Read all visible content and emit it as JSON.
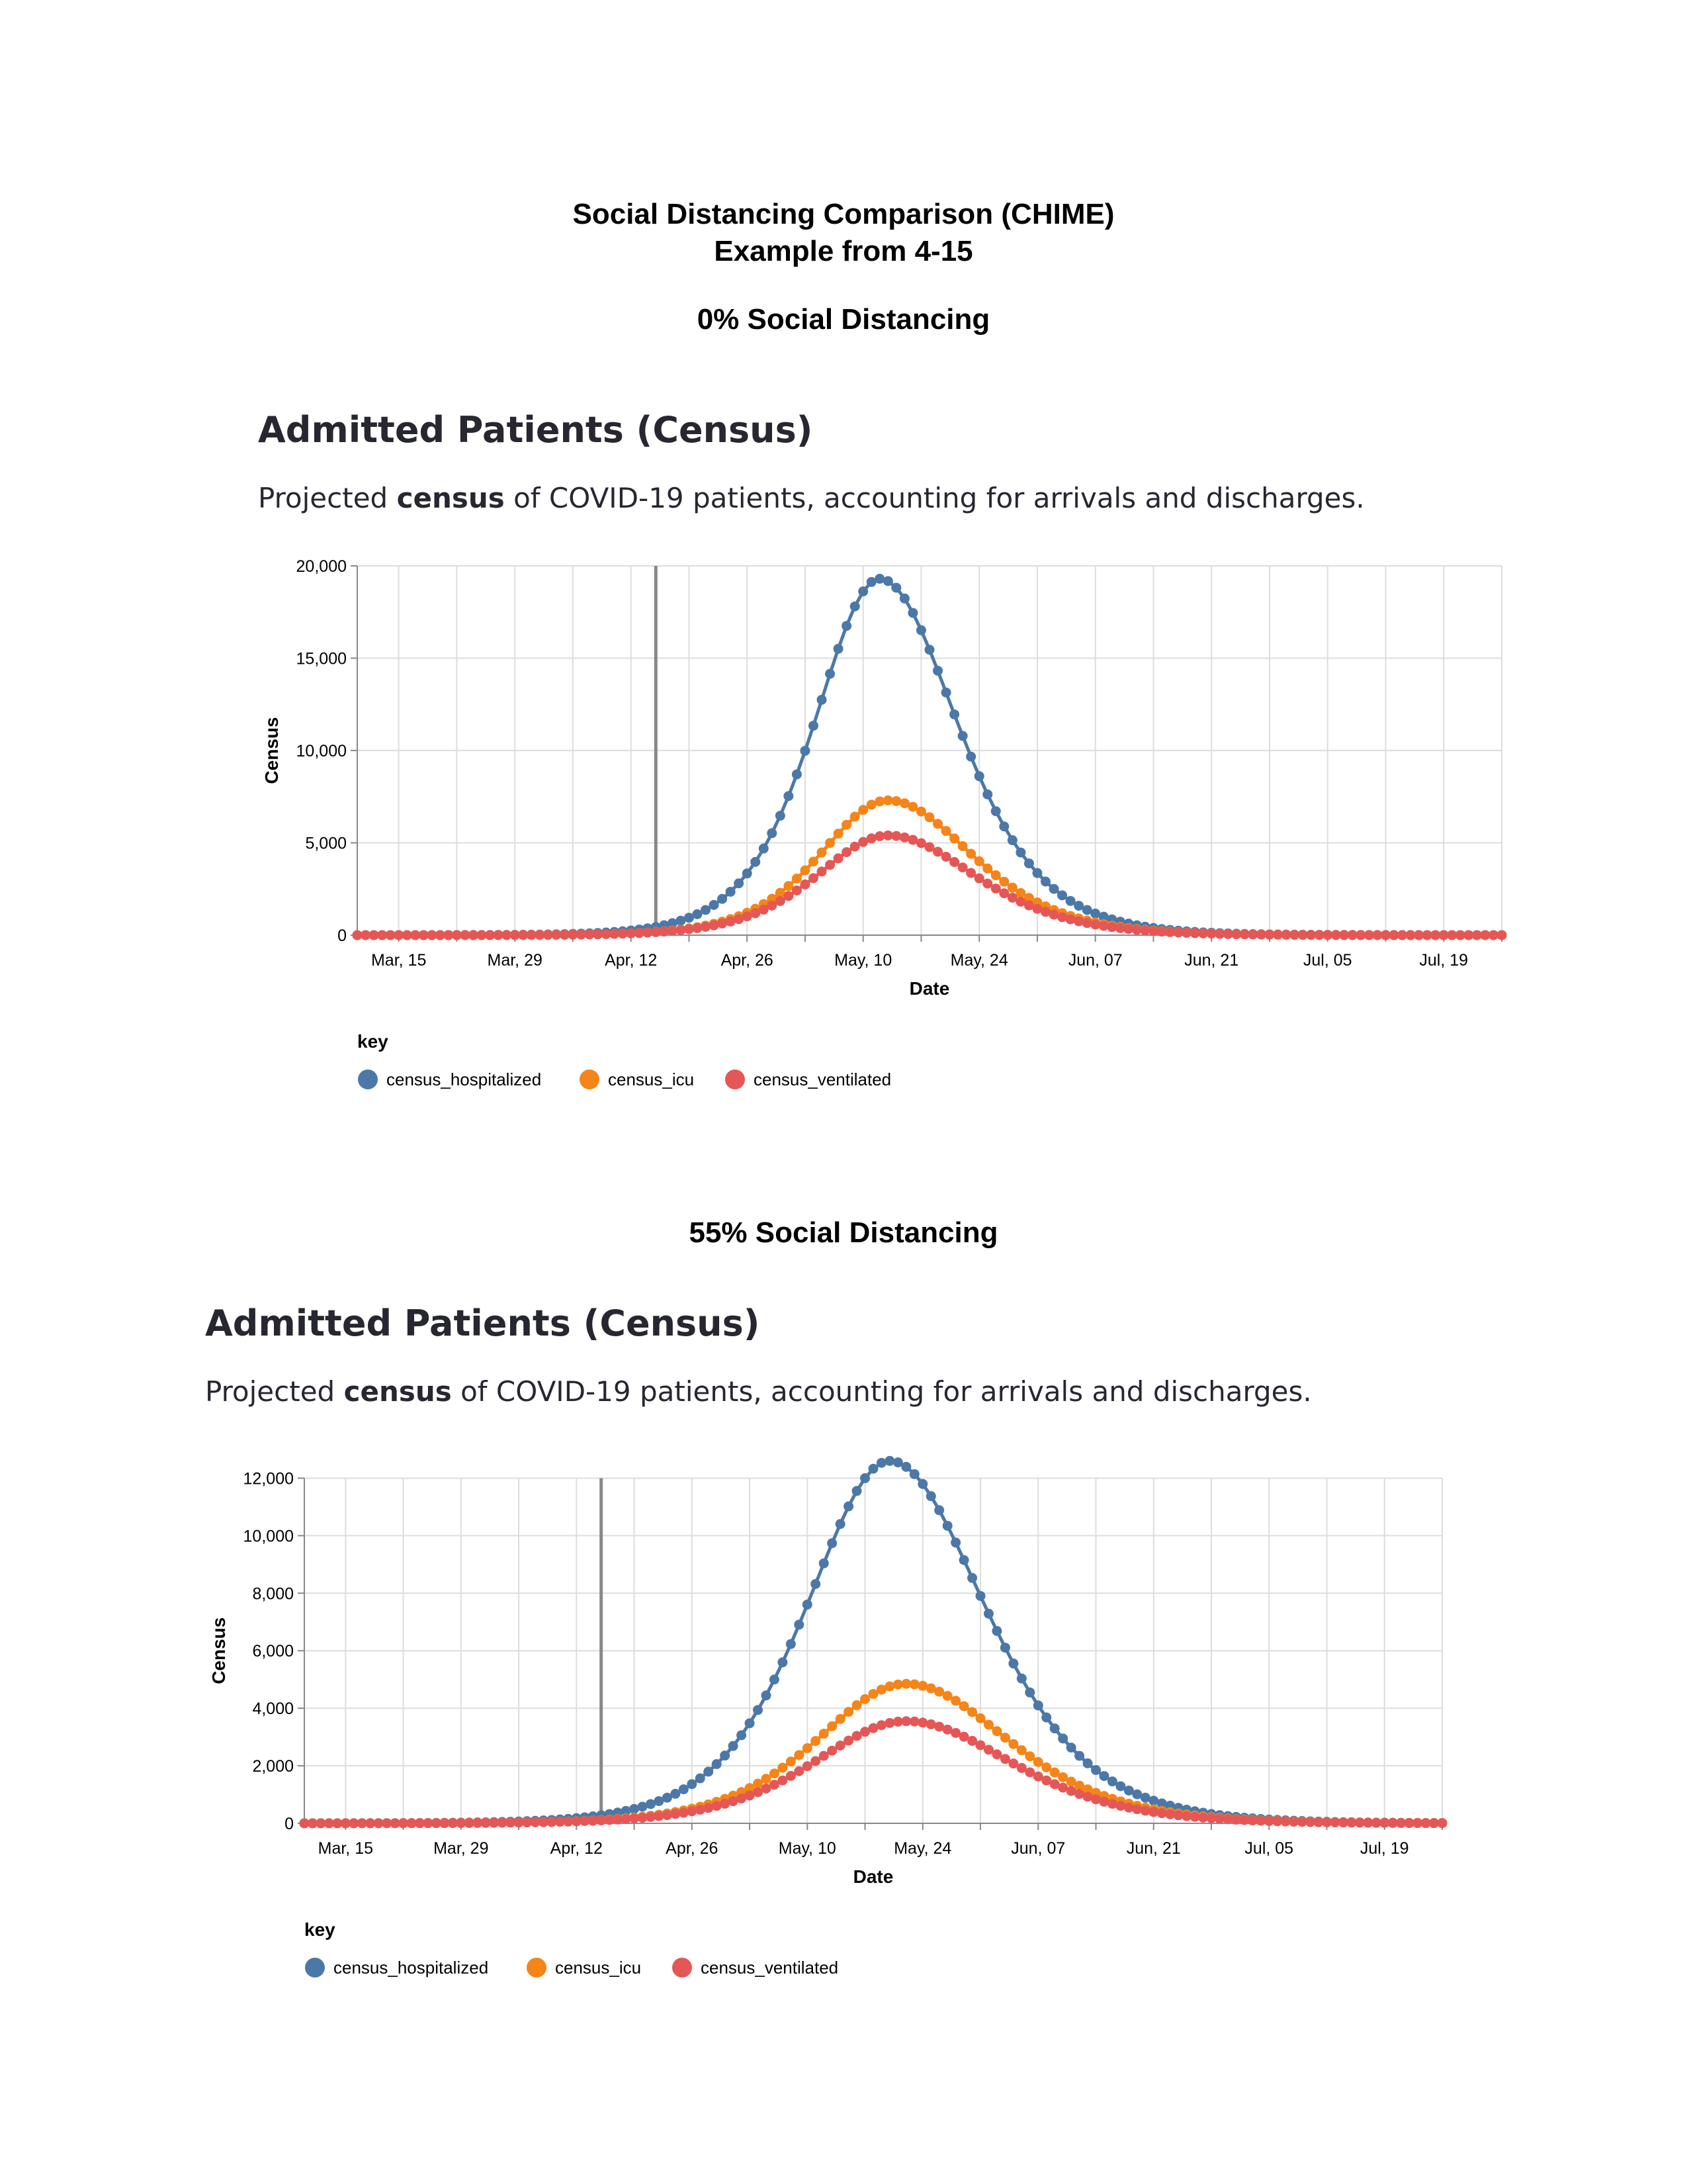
{
  "document": {
    "title_line1": "Social Distancing Comparison (CHIME)",
    "title_line2": "Example from 4-15"
  },
  "sections": [
    {
      "heading": "0% Social Distancing",
      "chart_title": "Admitted Patients (Census)",
      "subtitle_pre": "Projected ",
      "subtitle_bold": "census",
      "subtitle_post": " of COVID-19 patients, accounting for arrivals and discharges."
    },
    {
      "heading": "55% Social Distancing",
      "chart_title": "Admitted Patients (Census)",
      "subtitle_pre": "Projected ",
      "subtitle_bold": "census",
      "subtitle_post": " of COVID-19 patients, accounting for arrivals and discharges."
    }
  ],
  "chart_data": [
    {
      "type": "line",
      "title": "Admitted Patients (Census)",
      "xlabel": "Date",
      "ylabel": "Census",
      "x_ticks": [
        "Mar, 15",
        "Mar, 29",
        "Apr, 12",
        "Apr, 26",
        "May, 10",
        "May, 24",
        "Jun, 07",
        "Jun, 21",
        "Jul, 05",
        "Jul, 19"
      ],
      "x_range": [
        "2020-03-10",
        "2020-07-26"
      ],
      "ylim": [
        0,
        20000
      ],
      "y_ticks": [
        0,
        5000,
        10000,
        15000,
        20000
      ],
      "y_tick_labels": [
        "0",
        "5,000",
        "10,000",
        "15,000",
        "20,000"
      ],
      "grid": true,
      "today_marker": "2020-04-15",
      "legend_title": "key",
      "legend_position": "bottom-left",
      "series": [
        {
          "name": "census_hospitalized",
          "color": "#4c78a8",
          "peak_date": "2020-05-12",
          "peak_value": 19300,
          "rise_days": 10.5,
          "fall_days": 12.5
        },
        {
          "name": "census_icu",
          "color": "#f58518",
          "peak_date": "2020-05-13",
          "peak_value": 7300,
          "rise_days": 11,
          "fall_days": 13.5
        },
        {
          "name": "census_ventilated",
          "color": "#e45756",
          "peak_date": "2020-05-13",
          "peak_value": 5400,
          "rise_days": 11.5,
          "fall_days": 14
        }
      ]
    },
    {
      "type": "line",
      "title": "Admitted Patients (Census)",
      "xlabel": "Date",
      "ylabel": "Census",
      "x_ticks": [
        "Mar, 15",
        "Mar, 29",
        "Apr, 12",
        "Apr, 26",
        "May, 10",
        "May, 24",
        "Jun, 07",
        "Jun, 21",
        "Jul, 05",
        "Jul, 19"
      ],
      "x_range": [
        "2020-03-10",
        "2020-07-26"
      ],
      "ylim": [
        0,
        13000
      ],
      "y_ticks": [
        0,
        2000,
        4000,
        6000,
        8000,
        10000,
        12000
      ],
      "y_tick_labels": [
        "0",
        "2,000",
        "4,000",
        "6,000",
        "8,000",
        "10,000",
        "12,000"
      ],
      "grid": true,
      "today_marker": "2020-04-15",
      "legend_title": "key",
      "legend_position": "bottom-left",
      "series": [
        {
          "name": "census_hospitalized",
          "color": "#4c78a8",
          "peak_date": "2020-05-20",
          "peak_value": 12600,
          "rise_days": 13.5,
          "fall_days": 15.5
        },
        {
          "name": "census_icu",
          "color": "#f58518",
          "peak_date": "2020-05-22",
          "peak_value": 4850,
          "rise_days": 14.5,
          "fall_days": 16.5
        },
        {
          "name": "census_ventilated",
          "color": "#e45756",
          "peak_date": "2020-05-22",
          "peak_value": 3550,
          "rise_days": 15,
          "fall_days": 17
        }
      ]
    }
  ]
}
